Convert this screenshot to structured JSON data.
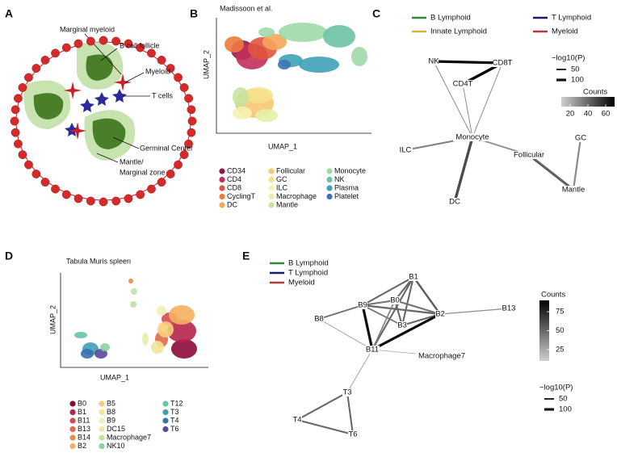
{
  "panels": {
    "A": {
      "letter": "A",
      "labels": [
        "Marginal myeloid",
        "B cell follicle",
        "Myeloid",
        "T cells",
        "Germinal Center",
        "Mantle/",
        "Marginal zone"
      ]
    },
    "B": {
      "letter": "B",
      "title": "Madissoon et al.",
      "xlabel": "UMAP_1",
      "ylabel": "UMAP_2",
      "legend": [
        {
          "name": "CD34",
          "color": "#8b1a4a"
        },
        {
          "name": "CD4",
          "color": "#c2305a"
        },
        {
          "name": "CD8",
          "color": "#e0553f"
        },
        {
          "name": "CyclingT",
          "color": "#ee7a3e"
        },
        {
          "name": "DC",
          "color": "#f5a55a"
        },
        {
          "name": "Follicular",
          "color": "#f7c771"
        },
        {
          "name": "GC",
          "color": "#f6e28e"
        },
        {
          "name": "ILC",
          "color": "#f4f3b0"
        },
        {
          "name": "Macrophage",
          "color": "#e7f0a5"
        },
        {
          "name": "Mantle",
          "color": "#c4e4a0"
        },
        {
          "name": "Monocyte",
          "color": "#9fd8a8"
        },
        {
          "name": "NK",
          "color": "#6cc3a5"
        },
        {
          "name": "Plasma",
          "color": "#3fa2b5"
        },
        {
          "name": "Platelet",
          "color": "#3b74b3"
        }
      ]
    },
    "C": {
      "letter": "C",
      "groups": [
        {
          "name": "B Lymphoid",
          "color": "#2e8b2e"
        },
        {
          "name": "T Lymphoid",
          "color": "#1a1a6e"
        },
        {
          "name": "Innate Lymphoid",
          "color": "#d4b43a"
        },
        {
          "name": "Myeloid",
          "color": "#b03a3a"
        }
      ],
      "size_legend": {
        "title": "−log10(P)",
        "ticks": [
          50,
          100
        ]
      },
      "color_legend": {
        "title": "Counts",
        "ticks": [
          20,
          40,
          60
        ],
        "clim": [
          10,
          70
        ]
      },
      "nodes": [
        {
          "label": "NK",
          "group": 2
        },
        {
          "label": "CD8T",
          "group": 1
        },
        {
          "label": "CD4T",
          "group": 1
        },
        {
          "label": "Monocyte",
          "group": 3
        },
        {
          "label": "ILC",
          "group": 2
        },
        {
          "label": "Follicular",
          "group": 0
        },
        {
          "label": "GC",
          "group": 0
        },
        {
          "label": "DC",
          "group": 3
        },
        {
          "label": "Mantle",
          "group": 0
        }
      ],
      "edges": [
        {
          "source": 0,
          "target": 1,
          "neglog10p": 100,
          "counts": 68
        },
        {
          "source": 1,
          "target": 2,
          "neglog10p": 110,
          "counts": 68
        },
        {
          "source": 0,
          "target": 3,
          "neglog10p": 20,
          "counts": 30
        },
        {
          "source": 2,
          "target": 3,
          "neglog10p": 20,
          "counts": 30
        },
        {
          "source": 1,
          "target": 3,
          "neglog10p": 20,
          "counts": 30
        },
        {
          "source": 4,
          "target": 3,
          "neglog10p": 60,
          "counts": 32
        },
        {
          "source": 3,
          "target": 7,
          "neglog10p": 105,
          "counts": 48
        },
        {
          "source": 3,
          "target": 5,
          "neglog10p": 55,
          "counts": 28
        },
        {
          "source": 5,
          "target": 8,
          "neglog10p": 95,
          "counts": 42
        },
        {
          "source": 6,
          "target": 8,
          "neglog10p": 65,
          "counts": 30
        }
      ]
    },
    "D": {
      "letter": "D",
      "title": "Tabula Muris spleen",
      "xlabel": "UMAP_1",
      "ylabel": "UMAP_2",
      "legend": [
        {
          "name": "B0",
          "color": "#8b0a3a"
        },
        {
          "name": "B1",
          "color": "#b8244a"
        },
        {
          "name": "B11",
          "color": "#d44a50"
        },
        {
          "name": "B13",
          "color": "#e06848"
        },
        {
          "name": "B14",
          "color": "#ee8a48"
        },
        {
          "name": "B2",
          "color": "#f5b062"
        },
        {
          "name": "B5",
          "color": "#f7cf78"
        },
        {
          "name": "B8",
          "color": "#f5e496"
        },
        {
          "name": "B9",
          "color": "#f0f0b4"
        },
        {
          "name": "DC15",
          "color": "#e4f0a8"
        },
        {
          "name": "Macrophage7",
          "color": "#bfe2a0"
        },
        {
          "name": "NK10",
          "color": "#8fd0a0"
        },
        {
          "name": "T12",
          "color": "#66c2a8"
        },
        {
          "name": "T3",
          "color": "#3e9fb8"
        },
        {
          "name": "T4",
          "color": "#3a6fb0"
        },
        {
          "name": "T6",
          "color": "#5a4a9a"
        }
      ]
    },
    "E": {
      "letter": "E",
      "groups": [
        {
          "name": "B Lymphoid",
          "color": "#2e8b2e"
        },
        {
          "name": "T Lymphoid",
          "color": "#1a1a6e"
        },
        {
          "name": "Myeloid",
          "color": "#b03a3a"
        }
      ],
      "size_legend": {
        "title": "−log10(P)",
        "ticks": [
          50,
          100
        ]
      },
      "color_legend": {
        "title": "Counts",
        "ticks": [
          25,
          50,
          75
        ],
        "clim": [
          10,
          90
        ]
      },
      "nodes": [
        {
          "label": "B1",
          "group": 0
        },
        {
          "label": "B9",
          "group": 0
        },
        {
          "label": "B0",
          "group": 0
        },
        {
          "label": "B2",
          "group": 0
        },
        {
          "label": "B13",
          "group": 0
        },
        {
          "label": "B8",
          "group": 0
        },
        {
          "label": "B3",
          "group": 0
        },
        {
          "label": "B11",
          "group": 0
        },
        {
          "label": "Macrophage7",
          "group": 2
        },
        {
          "label": "T3",
          "group": 1
        },
        {
          "label": "T4",
          "group": 1
        },
        {
          "label": "T6",
          "group": 1
        }
      ],
      "edges": [
        {
          "source": 0,
          "target": 1,
          "neglog10p": 60,
          "counts": 50
        },
        {
          "source": 0,
          "target": 2,
          "neglog10p": 60,
          "counts": 50
        },
        {
          "source": 0,
          "target": 3,
          "neglog10p": 70,
          "counts": 55
        },
        {
          "source": 0,
          "target": 6,
          "neglog10p": 60,
          "counts": 50
        },
        {
          "source": 0,
          "target": 7,
          "neglog10p": 60,
          "counts": 50
        },
        {
          "source": 1,
          "target": 2,
          "neglog10p": 60,
          "counts": 45
        },
        {
          "source": 1,
          "target": 3,
          "neglog10p": 65,
          "counts": 50
        },
        {
          "source": 1,
          "target": 6,
          "neglog10p": 50,
          "counts": 45
        },
        {
          "source": 1,
          "target": 7,
          "neglog10p": 100,
          "counts": 85
        },
        {
          "source": 2,
          "target": 3,
          "neglog10p": 60,
          "counts": 45
        },
        {
          "source": 2,
          "target": 6,
          "neglog10p": 60,
          "counts": 50
        },
        {
          "source": 2,
          "target": 7,
          "neglog10p": 45,
          "counts": 40
        },
        {
          "source": 3,
          "target": 6,
          "neglog10p": 60,
          "counts": 50
        },
        {
          "source": 3,
          "target": 7,
          "neglog10p": 100,
          "counts": 85
        },
        {
          "source": 3,
          "target": 4,
          "neglog10p": 30,
          "counts": 35
        },
        {
          "source": 5,
          "target": 1,
          "neglog10p": 55,
          "counts": 45
        },
        {
          "source": 5,
          "target": 7,
          "neglog10p": 15,
          "counts": 30
        },
        {
          "source": 7,
          "target": 8,
          "neglog10p": 10,
          "counts": 30
        },
        {
          "source": 7,
          "target": 9,
          "neglog10p": 15,
          "counts": 30
        },
        {
          "source": 9,
          "target": 10,
          "neglog10p": 60,
          "counts": 50
        },
        {
          "source": 9,
          "target": 11,
          "neglog10p": 60,
          "counts": 50
        },
        {
          "source": 10,
          "target": 11,
          "neglog10p": 60,
          "counts": 50
        }
      ]
    }
  }
}
